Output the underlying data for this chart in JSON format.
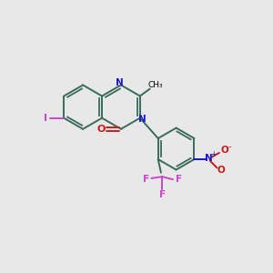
{
  "bg_color": "#e8e8e8",
  "bond_color": "#3a6b5a",
  "n_color": "#1a1acc",
  "o_color": "#cc1a1a",
  "f_color": "#cc44cc",
  "i_color": "#cc44cc",
  "lw": 1.4,
  "fig_size": [
    3.0,
    3.0
  ],
  "dpi": 100,
  "xlim": [
    0,
    10
  ],
  "ylim": [
    0,
    10
  ]
}
